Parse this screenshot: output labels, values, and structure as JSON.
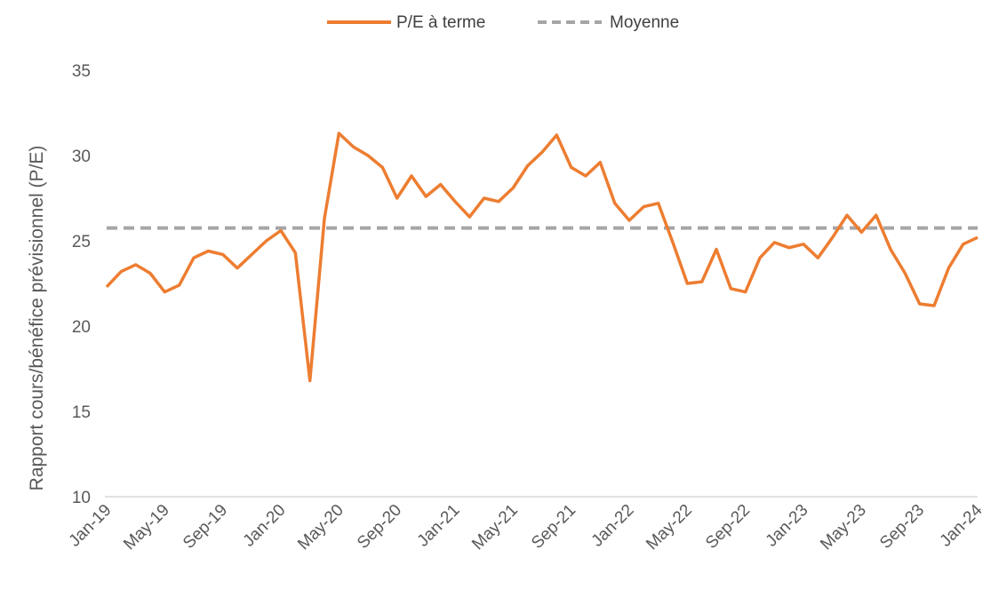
{
  "chart_data": {
    "type": "line",
    "ylabel": "Rapport cours/bénéfice prévisionnel (P/E)",
    "ylim": [
      10,
      35
    ],
    "yticks": [
      "10",
      "15",
      "20",
      "25",
      "30",
      "35"
    ],
    "x_ticks": [
      "Jan-19",
      "May-19",
      "Sep-19",
      "Jan-20",
      "May-20",
      "Sep-20",
      "Jan-21",
      "May-21",
      "Sep-21",
      "Jan-22",
      "May-22",
      "Sep-22",
      "Jan-23",
      "May-23",
      "Sep-23",
      "Jan-24"
    ],
    "xlim": [
      "2019-01",
      "2024-01"
    ],
    "legend_position": "top-center",
    "grid": false,
    "series": [
      {
        "name": "P/E à terme",
        "color": "#ED7D31",
        "points": [
          [
            "2019-01",
            22.3
          ],
          [
            "2019-02",
            23.2
          ],
          [
            "2019-03",
            23.6
          ],
          [
            "2019-04",
            23.1
          ],
          [
            "2019-05",
            22.0
          ],
          [
            "2019-06",
            22.4
          ],
          [
            "2019-07",
            24.0
          ],
          [
            "2019-08",
            24.4
          ],
          [
            "2019-09",
            24.2
          ],
          [
            "2019-10",
            23.4
          ],
          [
            "2019-11",
            24.2
          ],
          [
            "2019-12",
            25.0
          ],
          [
            "2020-01",
            25.6
          ],
          [
            "2020-02",
            24.3
          ],
          [
            "2020-03",
            16.8
          ],
          [
            "2020-04",
            26.3
          ],
          [
            "2020-05",
            31.3
          ],
          [
            "2020-06",
            30.5
          ],
          [
            "2020-07",
            30.0
          ],
          [
            "2020-08",
            29.3
          ],
          [
            "2020-09",
            27.5
          ],
          [
            "2020-10",
            28.8
          ],
          [
            "2020-11",
            27.6
          ],
          [
            "2020-12",
            28.3
          ],
          [
            "2021-01",
            27.3
          ],
          [
            "2021-02",
            26.4
          ],
          [
            "2021-03",
            27.5
          ],
          [
            "2021-04",
            27.3
          ],
          [
            "2021-05",
            28.1
          ],
          [
            "2021-06",
            29.4
          ],
          [
            "2021-07",
            30.2
          ],
          [
            "2021-08",
            31.2
          ],
          [
            "2021-09",
            29.3
          ],
          [
            "2021-10",
            28.8
          ],
          [
            "2021-11",
            29.6
          ],
          [
            "2021-12",
            27.2
          ],
          [
            "2022-01",
            26.2
          ],
          [
            "2022-02",
            27.0
          ],
          [
            "2022-03",
            27.2
          ],
          [
            "2022-04",
            24.9
          ],
          [
            "2022-05",
            22.5
          ],
          [
            "2022-06",
            22.6
          ],
          [
            "2022-07",
            24.5
          ],
          [
            "2022-08",
            22.2
          ],
          [
            "2022-09",
            22.0
          ],
          [
            "2022-10",
            24.0
          ],
          [
            "2022-11",
            24.9
          ],
          [
            "2022-12",
            24.6
          ],
          [
            "2023-01",
            24.8
          ],
          [
            "2023-02",
            24.0
          ],
          [
            "2023-03",
            25.2
          ],
          [
            "2023-04",
            26.5
          ],
          [
            "2023-05",
            25.5
          ],
          [
            "2023-06",
            26.5
          ],
          [
            "2023-07",
            24.5
          ],
          [
            "2023-08",
            23.1
          ],
          [
            "2023-09",
            21.3
          ],
          [
            "2023-10",
            21.2
          ],
          [
            "2023-11",
            23.4
          ],
          [
            "2023-12",
            24.8
          ],
          [
            "2024-01",
            25.2
          ]
        ]
      },
      {
        "name": "Moyenne",
        "color": "#A6A6A6",
        "style": "dashed",
        "value": 25.75
      }
    ]
  }
}
